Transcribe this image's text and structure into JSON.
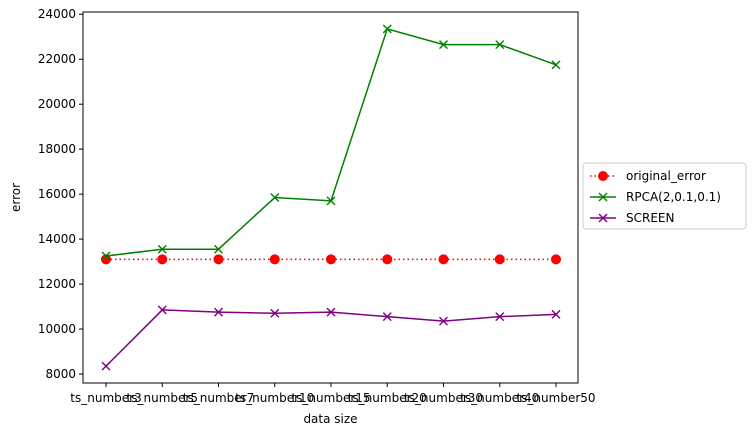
{
  "chart_data": {
    "type": "line",
    "xlabel": "data size",
    "ylabel": "error",
    "categories": [
      "ts_number3",
      "ts_number5",
      "ts_number7",
      "ts_number10",
      "ts_number15",
      "ts_number20",
      "ts_number30",
      "ts_number40",
      "ts_number50"
    ],
    "ylim": [
      7600,
      24100
    ],
    "yticks": [
      8000,
      10000,
      12000,
      14000,
      16000,
      18000,
      20000,
      22000,
      24000
    ],
    "grid": false,
    "legend_position": "center-right outside",
    "series": [
      {
        "name": "original_error",
        "color": "#ff0000",
        "line_style": "dotted",
        "marker": "circle",
        "values": [
          13100,
          13100,
          13100,
          13100,
          13100,
          13100,
          13100,
          13100,
          13100
        ]
      },
      {
        "name": "RPCA(2,0.1,0.1)",
        "color": "#008000",
        "line_style": "solid",
        "marker": "x",
        "values": [
          13250,
          13550,
          13550,
          15850,
          15700,
          23350,
          22650,
          22650,
          21750
        ]
      },
      {
        "name": "SCREEN",
        "color": "#800080",
        "line_style": "solid",
        "marker": "x",
        "values": [
          8350,
          10850,
          10750,
          10700,
          10750,
          10550,
          10350,
          10550,
          10650
        ]
      }
    ]
  }
}
